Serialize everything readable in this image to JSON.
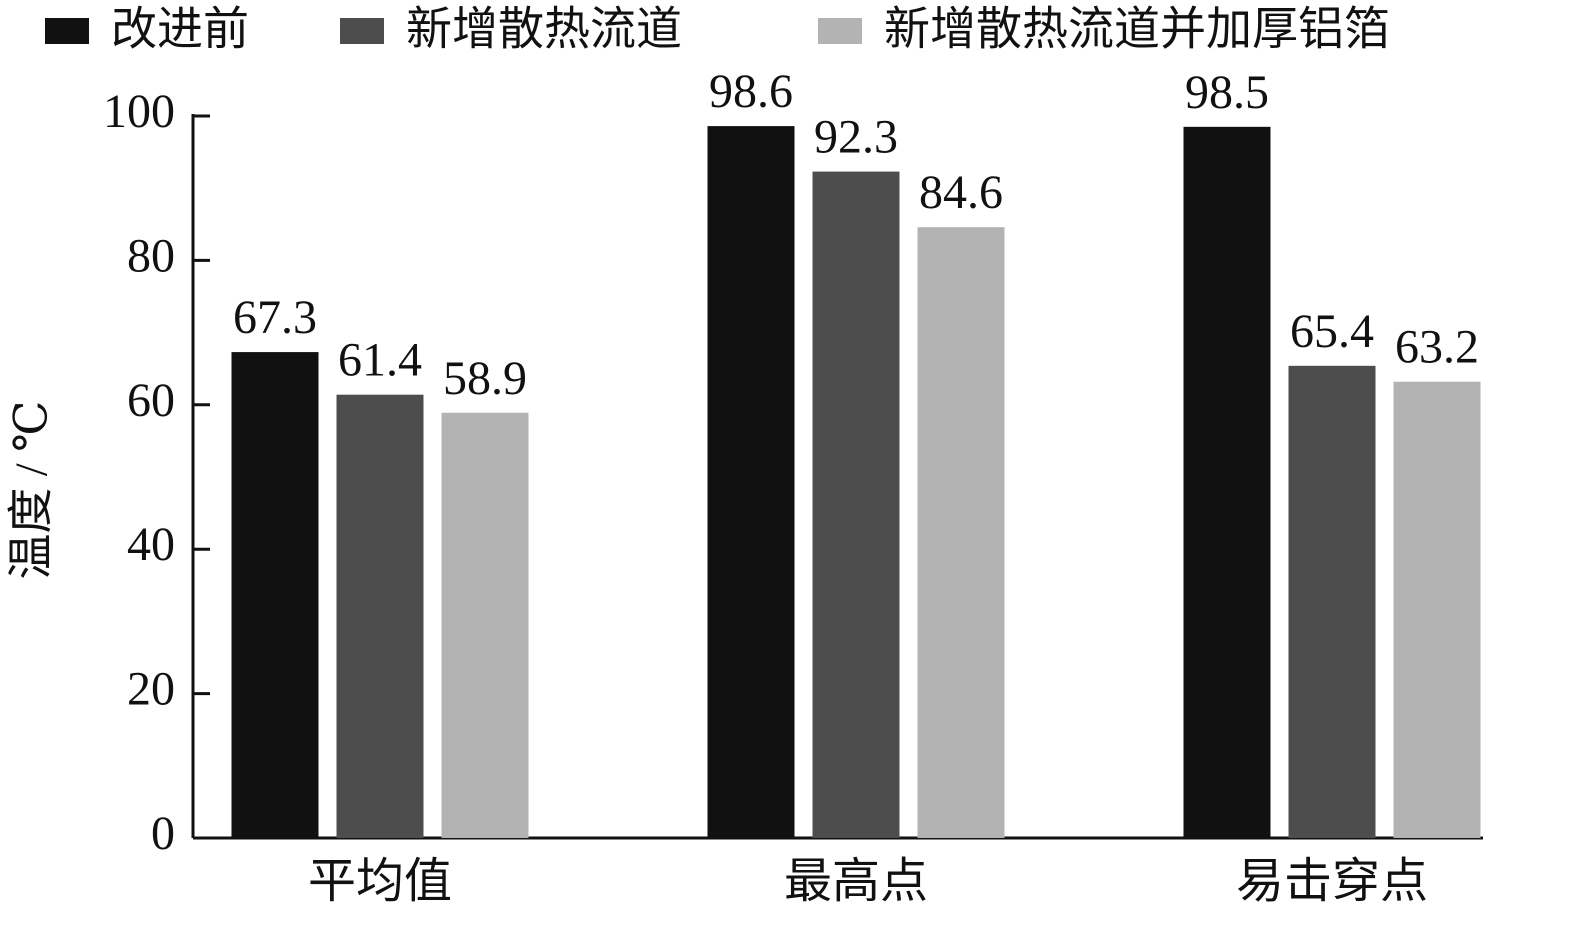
{
  "chart_data": {
    "type": "bar",
    "y_label": "温度 / ℃",
    "categories": [
      "平均值",
      "最高点",
      "易击穿点"
    ],
    "series": [
      {
        "name": "改进前",
        "color": "#111111",
        "values": [
          67.3,
          98.6,
          98.5
        ]
      },
      {
        "name": "新增散热流道",
        "color": "#4d4d4d",
        "values": [
          61.4,
          92.3,
          65.4
        ]
      },
      {
        "name": "新增散热流道并加厚铝箔",
        "color": "#b3b3b3",
        "values": [
          58.9,
          84.6,
          63.2
        ]
      }
    ],
    "ylim": [
      0,
      100
    ],
    "yticks": [
      0,
      20,
      40,
      60,
      80,
      100
    ],
    "legend": "top"
  }
}
